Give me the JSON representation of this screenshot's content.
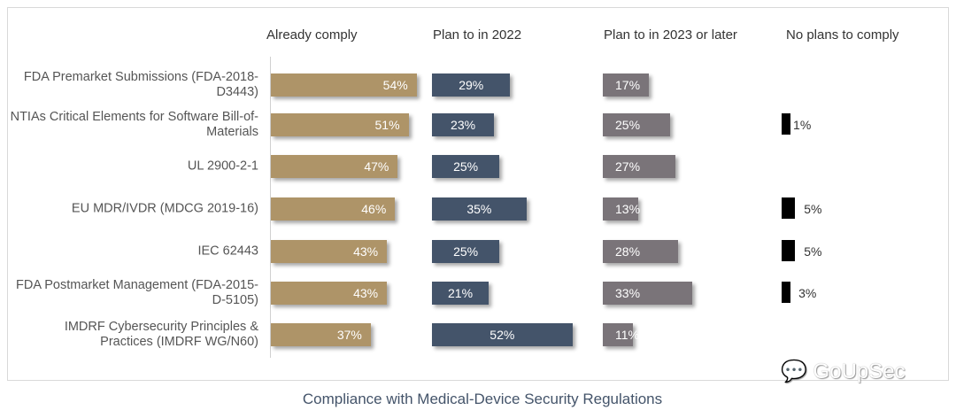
{
  "chart_data": {
    "type": "bar",
    "orientation": "horizontal",
    "title": "Compliance with Medical-Device Security Regulations",
    "categories": [
      "FDA Premarket Submissions (FDA-2018-D3443)",
      "NTIAs Critical Elements for Software Bill-of-Materials",
      "UL 2900-2-1",
      "EU MDR/IVDR (MDCG 2019-16)",
      "IEC 62443",
      "FDA Postmarket Management (FDA-2015-D-5105)",
      "IMDRF Cybersecurity Principles & Practices (IMDRF WG/N60)"
    ],
    "series": [
      {
        "name": "Already comply",
        "color": "#ae9468",
        "values": [
          54,
          51,
          47,
          46,
          43,
          43,
          37
        ]
      },
      {
        "name": "Plan to in 2022",
        "color": "#44546a",
        "values": [
          29,
          23,
          25,
          35,
          25,
          21,
          52
        ]
      },
      {
        "name": "Plan to in 2023 or later",
        "color": "#7a7479",
        "values": [
          17,
          25,
          27,
          13,
          28,
          33,
          11
        ]
      },
      {
        "name": "No plans to comply",
        "color": "#000000",
        "values": [
          null,
          1,
          null,
          5,
          5,
          3,
          null
        ]
      }
    ],
    "unit": "%",
    "legend": "column headers"
  },
  "watermark": "GoUpSec"
}
